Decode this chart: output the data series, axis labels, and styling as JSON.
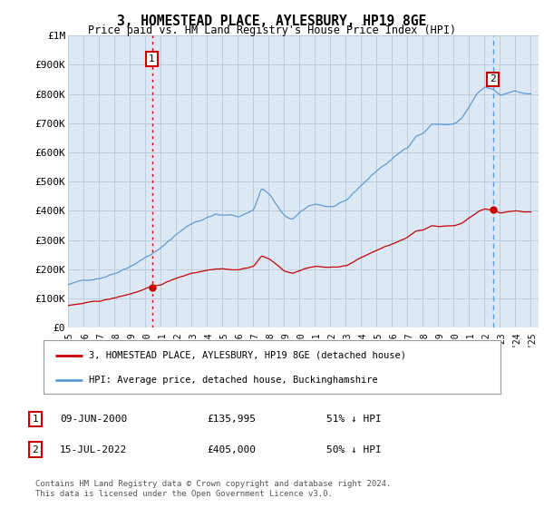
{
  "title": "3, HOMESTEAD PLACE, AYLESBURY, HP19 8GE",
  "subtitle": "Price paid vs. HM Land Registry's House Price Index (HPI)",
  "ylabel_ticks": [
    "£0",
    "£100K",
    "£200K",
    "£300K",
    "£400K",
    "£500K",
    "£600K",
    "£700K",
    "£800K",
    "£900K",
    "£1M"
  ],
  "ytick_values": [
    0,
    100000,
    200000,
    300000,
    400000,
    500000,
    600000,
    700000,
    800000,
    900000,
    1000000
  ],
  "ylim": [
    0,
    1000000
  ],
  "xlim_start": 1995.4,
  "xlim_end": 2025.5,
  "hpi_color": "#5b9bd5",
  "price_color": "#cc0000",
  "chart_bg": "#dce9f5",
  "transaction1_x": 2000.44,
  "transaction1_y": 135995,
  "transaction2_x": 2022.54,
  "transaction2_y": 405000,
  "vline1_color": "#cc0000",
  "vline1_style": ":",
  "vline2_color": "#5b9bd5",
  "vline2_style": "--",
  "legend_line1": "3, HOMESTEAD PLACE, AYLESBURY, HP19 8GE (detached house)",
  "legend_line2": "HPI: Average price, detached house, Buckinghamshire",
  "table_row1": [
    "1",
    "09-JUN-2000",
    "£135,995",
    "51% ↓ HPI"
  ],
  "table_row2": [
    "2",
    "15-JUL-2022",
    "£405,000",
    "50% ↓ HPI"
  ],
  "footnote": "Contains HM Land Registry data © Crown copyright and database right 2024.\nThis data is licensed under the Open Government Licence v3.0.",
  "background_color": "#ffffff",
  "grid_color": "#bbccdd"
}
